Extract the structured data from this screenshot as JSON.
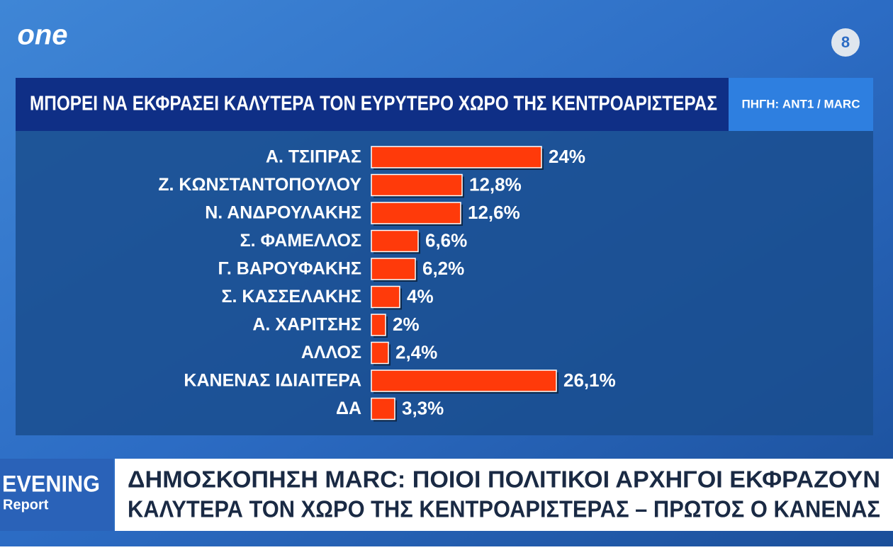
{
  "logo": "one",
  "channel": "8",
  "chart_data": {
    "type": "bar",
    "orientation": "horizontal",
    "title": "ΜΠΟΡΕΙ ΝΑ ΕΚΦΡΑΣΕΙ ΚΑΛΥΤΕΡΑ ΤΟΝ ΕΥΡΥΤΕΡΟ ΧΩΡΟ ΤΗΣ ΚΕΝΤΡΟΑΡΙΣΤΕΡΑΣ",
    "source": "ΠΗΓΗ: ANT1 / MARC",
    "categories": [
      "Α. ΤΣΙΠΡΑΣ",
      "Ζ. ΚΩΝΣΤΑΝΤΟΠΟΥΛΟΥ",
      "Ν. ΑΝΔΡΟΥΛΑΚΗΣ",
      "Σ. ΦΑΜΕΛΛΟΣ",
      "Γ. ΒΑΡΟΥΦΑΚΗΣ",
      "Σ. ΚΑΣΣΕΛΑΚΗΣ",
      "Α. ΧΑΡΙΤΣΗΣ",
      "ΑΛΛΟΣ",
      "ΚΑΝΕΝΑΣ ΙΔΙΑΙΤΕΡΑ",
      "ΔΑ"
    ],
    "values": [
      24,
      12.8,
      12.6,
      6.6,
      6.2,
      4,
      2,
      2.4,
      26.1,
      3.3
    ],
    "value_labels": [
      "24%",
      "12,8%",
      "12,6%",
      "6,6%",
      "6,2%",
      "4%",
      "2%",
      "2,4%",
      "26,1%",
      "3,3%"
    ],
    "color": "#ff3a0a"
  },
  "show": {
    "name_line1": "EVENING",
    "name_line2": "Report"
  },
  "headline": {
    "lines": [
      "ΔΗΜΟΣΚΟΠΗΣΗ MARC: ΠΟΙΟΙ ΠΟΛΙΤΙΚΟΙ ΑΡΧΗΓΟΙ ΕΚΦΡΑΖΟΥΝ",
      "ΚΑΛΥΤΕΡΑ ΤΟΝ ΧΩΡΟ ΤΗΣ ΚΕΝΤΡΟΑΡΙΣΤΕΡΑΣ – ΠΡΩΤΟΣ Ο ΚΑΝΕΝΑΣ"
    ]
  }
}
